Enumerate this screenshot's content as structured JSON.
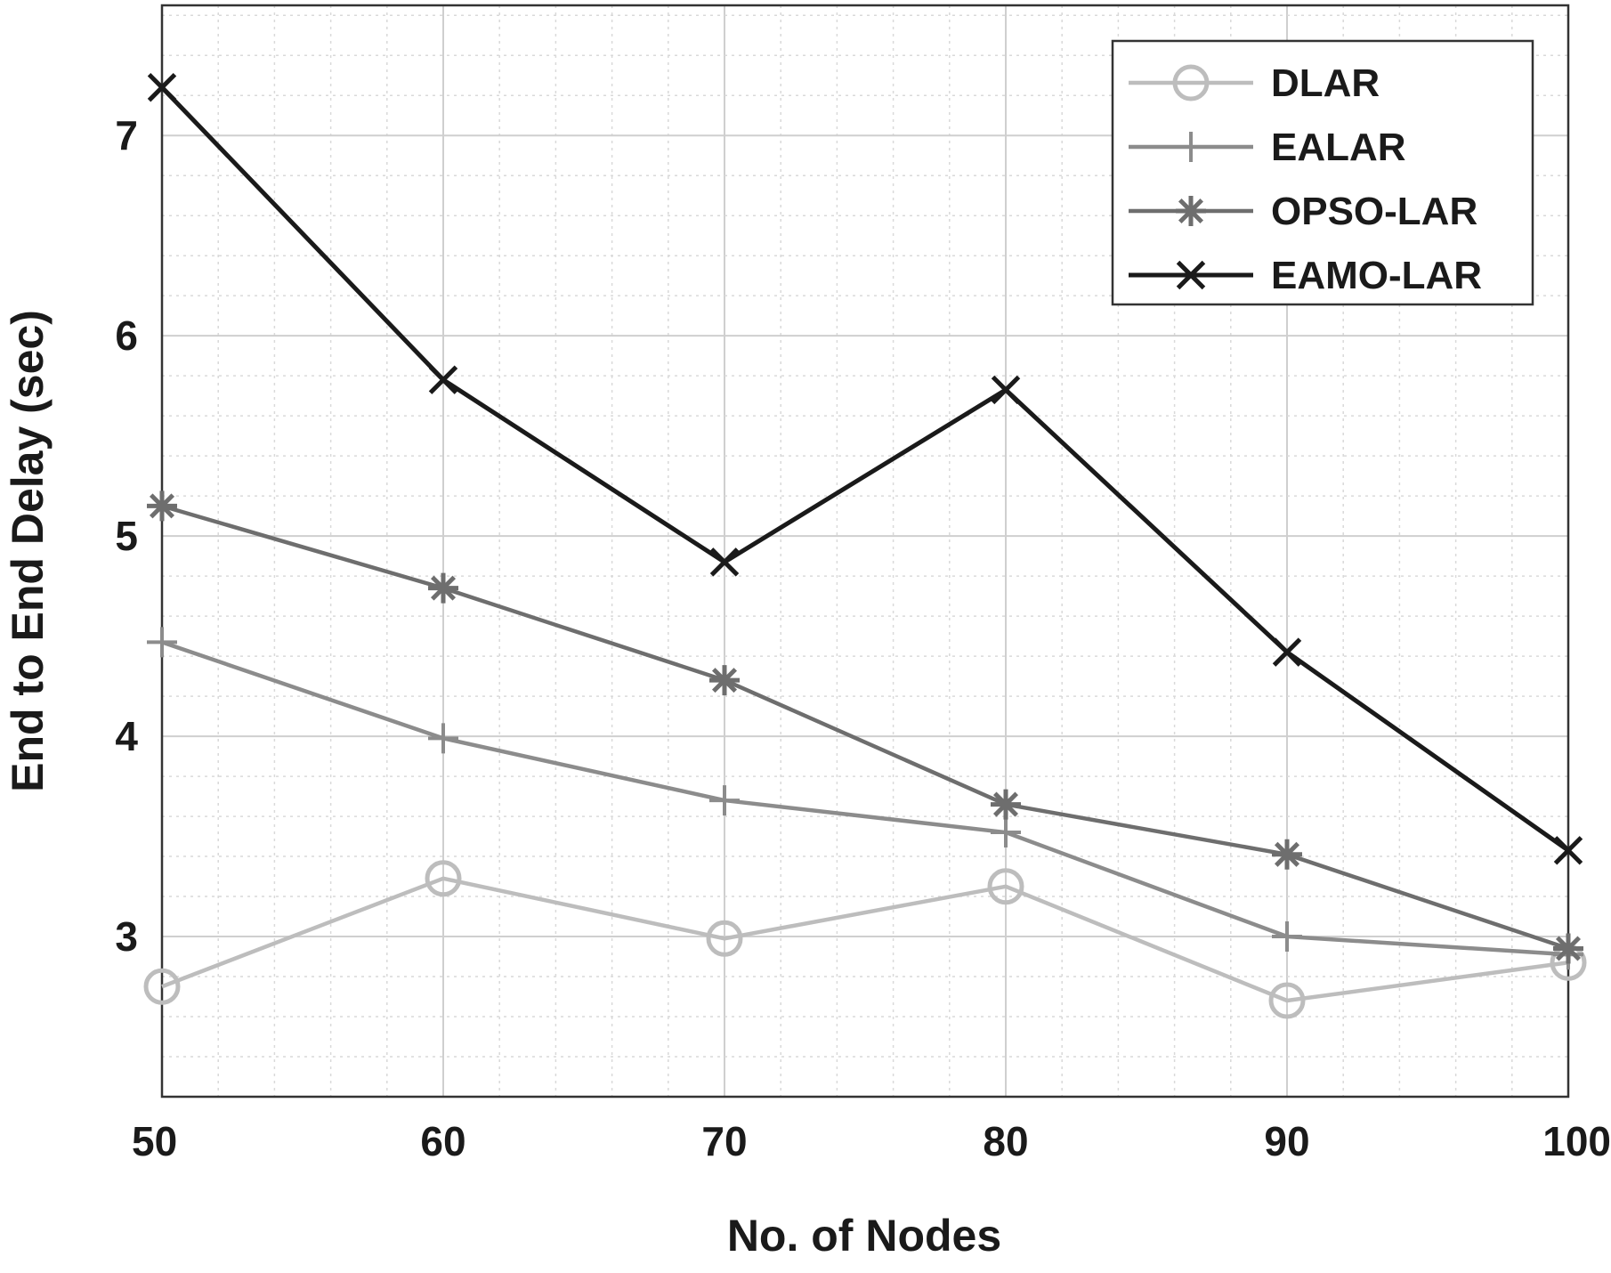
{
  "chart_data": {
    "type": "line",
    "title": "",
    "xlabel": "No. of Nodes",
    "ylabel": "End to End Delay (sec)",
    "x": [
      50,
      60,
      70,
      80,
      90,
      100
    ],
    "xticks": [
      "50",
      "60",
      "70",
      "80",
      "90",
      "100"
    ],
    "yticks": [
      "3",
      "4",
      "5",
      "6",
      "7"
    ],
    "xlim": [
      50,
      100
    ],
    "ylim": [
      2.2,
      7.65
    ],
    "grid": true,
    "legend_position": "top-right",
    "series": [
      {
        "name": "DLAR",
        "values": [
          2.75,
          3.29,
          2.99,
          3.25,
          2.68,
          2.87
        ],
        "color": "#bdbdbd",
        "marker": "circle"
      },
      {
        "name": "EALAR",
        "values": [
          4.47,
          3.99,
          3.68,
          3.52,
          3.0,
          2.91
        ],
        "color": "#8c8c8c",
        "marker": "plus"
      },
      {
        "name": "OPSO-LAR",
        "values": [
          5.15,
          4.74,
          4.28,
          3.66,
          3.41,
          2.94
        ],
        "color": "#6e6e6e",
        "marker": "asterisk"
      },
      {
        "name": "EAMO-LAR",
        "values": [
          7.24,
          5.78,
          4.87,
          5.73,
          4.42,
          3.43
        ],
        "color": "#1a1a1a",
        "marker": "x"
      }
    ]
  }
}
